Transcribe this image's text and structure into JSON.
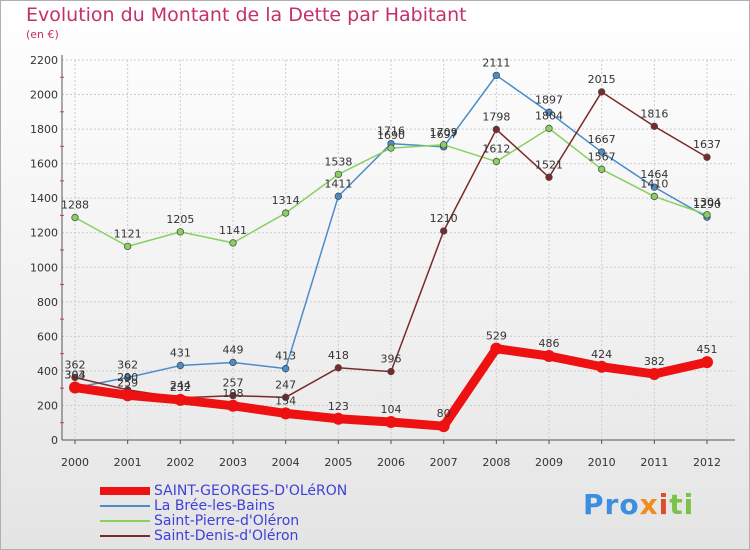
{
  "title": "Evolution du Montant de la Dette par Habitant",
  "subtitle": "(en €)",
  "logo": {
    "text": "Proxiti",
    "parts": [
      "Pro",
      "x",
      "i",
      "ti"
    ]
  },
  "chart_data": {
    "type": "line",
    "x": [
      "2000",
      "2001",
      "2002",
      "2003",
      "2004",
      "2005",
      "2006",
      "2007",
      "2008",
      "2009",
      "2010",
      "2011",
      "2012"
    ],
    "yticks": [
      0,
      200,
      400,
      600,
      800,
      1000,
      1200,
      1400,
      1600,
      1800,
      2000,
      2200
    ],
    "ylim": [
      0,
      2200
    ],
    "grid": true,
    "legend_position": "bottom-left",
    "series": [
      {
        "name": "SAINT-GEORGES-D'OLéRON",
        "color": "#ee1111",
        "width": 9,
        "values": [
          304,
          259,
          232,
          198,
          154,
          123,
          104,
          80,
          529,
          486,
          424,
          382,
          451
        ],
        "labels": [
          "304",
          "259",
          "232",
          "198",
          "154",
          "123",
          "104",
          "80",
          "529",
          "486",
          "424",
          "382",
          "451"
        ]
      },
      {
        "name": "La Brée-les-Bains",
        "color": "#4a8cc8",
        "width": 1.5,
        "values": [
          303,
          362,
          431,
          449,
          413,
          1411,
          1716,
          1697,
          2111,
          1897,
          1667,
          1464,
          1290
        ],
        "labels": [
          "303",
          "362",
          "431",
          "449",
          "413",
          "1411",
          "1716",
          "1697",
          "2111",
          "1897",
          "1667",
          "1464",
          "1290"
        ]
      },
      {
        "name": "Saint-Pierre-d'Oléron",
        "color": "#88d060",
        "width": 1.5,
        "values": [
          1288,
          1121,
          1205,
          1141,
          1314,
          1538,
          1690,
          1709,
          1612,
          1804,
          1567,
          1410,
          1304
        ],
        "labels": [
          "1288",
          "1121",
          "1205",
          "1141",
          "1314",
          "1538",
          "1690",
          "1709",
          "1612",
          "1804",
          "1567",
          "1410",
          "1304"
        ]
      },
      {
        "name": "Saint-Denis-d'Oléron",
        "color": "#7a2a2a",
        "width": 1.5,
        "values": [
          362,
          290,
          244,
          257,
          247,
          418,
          396,
          1210,
          1798,
          1521,
          2015,
          1816,
          1637
        ],
        "labels": [
          "362",
          "290",
          "244",
          "257",
          "247",
          "418",
          "396",
          "1210",
          "1798",
          "1521",
          "2015",
          "1816",
          "1637"
        ]
      }
    ]
  }
}
